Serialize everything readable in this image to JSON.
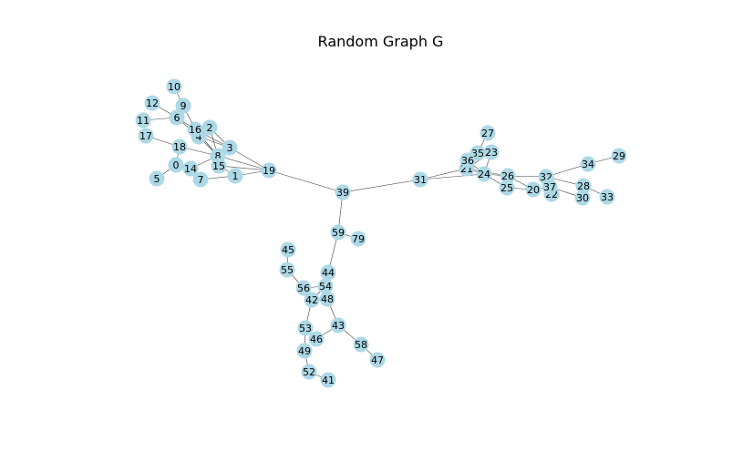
{
  "title": "Random Graph G",
  "node_color": "#add8e6",
  "edge_color": "#444444",
  "nodes": [
    "0",
    "1",
    "2",
    "3",
    "4",
    "5",
    "6",
    "7",
    "8",
    "9",
    "10",
    "11",
    "12",
    "14",
    "15",
    "16",
    "17",
    "18",
    "19",
    "20",
    "21",
    "22",
    "23",
    "24",
    "25",
    "26",
    "27",
    "28",
    "29",
    "30",
    "31",
    "32",
    "33",
    "34",
    "35",
    "36",
    "37",
    "39",
    "41",
    "42",
    "43",
    "44",
    "45",
    "46",
    "47",
    "48",
    "49",
    "52",
    "53",
    "54",
    "55",
    "56",
    "58",
    "59",
    "79"
  ],
  "edges": [
    [
      "10",
      "9"
    ],
    [
      "9",
      "6"
    ],
    [
      "9",
      "16"
    ],
    [
      "12",
      "6"
    ],
    [
      "11",
      "6"
    ],
    [
      "6",
      "16"
    ],
    [
      "6",
      "4"
    ],
    [
      "16",
      "2"
    ],
    [
      "16",
      "4"
    ],
    [
      "16",
      "3"
    ],
    [
      "16",
      "8"
    ],
    [
      "17",
      "18"
    ],
    [
      "18",
      "8"
    ],
    [
      "18",
      "0"
    ],
    [
      "4",
      "8"
    ],
    [
      "4",
      "3"
    ],
    [
      "2",
      "8"
    ],
    [
      "2",
      "3"
    ],
    [
      "3",
      "8"
    ],
    [
      "3",
      "19"
    ],
    [
      "8",
      "19"
    ],
    [
      "8",
      "15"
    ],
    [
      "8",
      "14"
    ],
    [
      "15",
      "19"
    ],
    [
      "15",
      "1"
    ],
    [
      "14",
      "7"
    ],
    [
      "0",
      "14"
    ],
    [
      "0",
      "5"
    ],
    [
      "7",
      "1"
    ],
    [
      "1",
      "19"
    ],
    [
      "19",
      "39"
    ],
    [
      "39",
      "31"
    ],
    [
      "31",
      "21"
    ],
    [
      "31",
      "24"
    ],
    [
      "27",
      "35"
    ],
    [
      "35",
      "36"
    ],
    [
      "35",
      "23"
    ],
    [
      "36",
      "21"
    ],
    [
      "36",
      "24"
    ],
    [
      "23",
      "21"
    ],
    [
      "23",
      "24"
    ],
    [
      "21",
      "24"
    ],
    [
      "21",
      "26"
    ],
    [
      "24",
      "26"
    ],
    [
      "24",
      "25"
    ],
    [
      "25",
      "20"
    ],
    [
      "26",
      "32"
    ],
    [
      "26",
      "20"
    ],
    [
      "32",
      "37"
    ],
    [
      "32",
      "34"
    ],
    [
      "32",
      "28"
    ],
    [
      "34",
      "29"
    ],
    [
      "37",
      "22"
    ],
    [
      "37",
      "30"
    ],
    [
      "28",
      "30"
    ],
    [
      "28",
      "33"
    ],
    [
      "20",
      "37"
    ],
    [
      "39",
      "59"
    ],
    [
      "59",
      "79"
    ],
    [
      "59",
      "44"
    ],
    [
      "44",
      "54"
    ],
    [
      "45",
      "55"
    ],
    [
      "55",
      "56"
    ],
    [
      "56",
      "54"
    ],
    [
      "56",
      "42"
    ],
    [
      "54",
      "42"
    ],
    [
      "54",
      "48"
    ],
    [
      "42",
      "48"
    ],
    [
      "42",
      "53"
    ],
    [
      "48",
      "43"
    ],
    [
      "43",
      "46"
    ],
    [
      "43",
      "58"
    ],
    [
      "58",
      "47"
    ],
    [
      "53",
      "46"
    ],
    [
      "53",
      "49"
    ],
    [
      "49",
      "52"
    ],
    [
      "52",
      "41"
    ]
  ]
}
